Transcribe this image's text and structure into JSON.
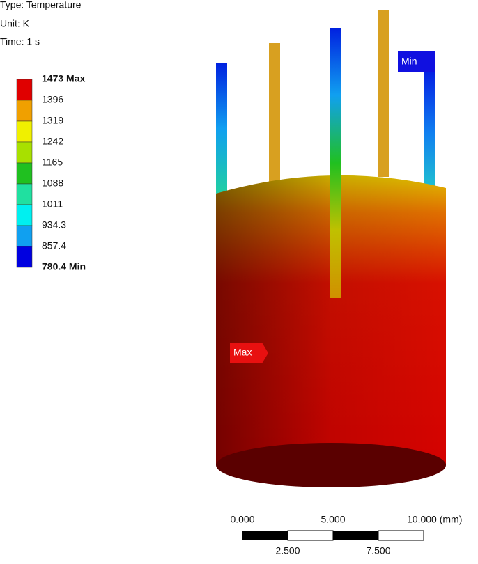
{
  "header": {
    "type": "Type: Temperature",
    "unit": "Unit: K",
    "time": "Time: 1 s"
  },
  "legend": {
    "labels": [
      "1473 Max",
      "1396",
      "1319",
      "1242",
      "1165",
      "1088",
      "1011",
      "934.3",
      "857.4",
      "780.4 Min"
    ],
    "colors": [
      "#e00000",
      "#f0a000",
      "#f0f000",
      "#a8e000",
      "#20c020",
      "#20e0a0",
      "#00f0f0",
      "#10a0f0",
      "#0000e0"
    ]
  },
  "markers": {
    "max": "Max",
    "min": "Min"
  },
  "scale_bar": {
    "top_labels": [
      "0.000",
      "5.000",
      "10.000 (mm)"
    ],
    "bottom_labels": [
      "2.500",
      "7.500"
    ]
  }
}
